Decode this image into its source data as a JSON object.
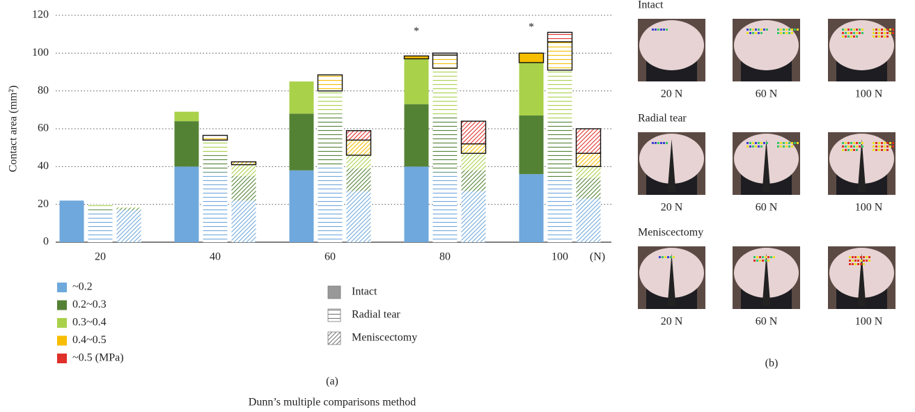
{
  "chart_data": {
    "type": "stacked_bar",
    "y_label": "Contact area (mm²)",
    "x_unit": "(N)",
    "categories": [
      "20",
      "40",
      "60",
      "80",
      "100"
    ],
    "conditions": [
      {
        "name": "Intact",
        "pattern": "solid"
      },
      {
        "name": "Radial tear",
        "pattern": "horizontal"
      },
      {
        "name": "Meniscectomy",
        "pattern": "diagonal"
      }
    ],
    "series": [
      {
        "name": "~0.2",
        "color": "#6fa8dc",
        "values": [
          [
            22,
            17,
            17
          ],
          [
            40,
            37,
            22
          ],
          [
            38,
            41,
            27
          ],
          [
            40,
            37,
            27
          ],
          [
            36,
            33,
            23
          ]
        ]
      },
      {
        "name": "0.2~0.3",
        "color": "#548235",
        "values": [
          [
            0,
            1.5,
            1
          ],
          [
            24,
            9,
            13
          ],
          [
            30,
            27,
            12
          ],
          [
            33,
            30,
            11
          ],
          [
            31,
            31,
            11
          ]
        ]
      },
      {
        "name": "0.3~0.4",
        "color": "#a9d14a",
        "values": [
          [
            0,
            1.5,
            0.5
          ],
          [
            5,
            8,
            6
          ],
          [
            17,
            12,
            7
          ],
          [
            24,
            25,
            9
          ],
          [
            28,
            27,
            6
          ]
        ]
      },
      {
        "name": "0.4~0.5",
        "color": "#f7bd00",
        "values": [
          [
            0,
            0,
            0
          ],
          [
            0,
            2.5,
            1.5
          ],
          [
            0,
            8.5,
            8
          ],
          [
            1.5,
            7,
            5
          ],
          [
            5,
            15,
            7
          ]
        ]
      },
      {
        "name": "~0.5 (MPa)",
        "color": "#e0302a",
        "values": [
          [
            0,
            0,
            0
          ],
          [
            0,
            0,
            0
          ],
          [
            0,
            0,
            5
          ],
          [
            0,
            1,
            12
          ],
          [
            0,
            5,
            13
          ]
        ]
      }
    ],
    "ylim": [
      0,
      120
    ],
    "yticks": [
      0,
      20,
      40,
      60,
      80,
      100,
      120
    ],
    "grid": true,
    "annotations": [
      "*",
      "*"
    ],
    "panel_label": "(a)",
    "caption": "Dunn’s multiple comparisons method"
  },
  "panel_b": {
    "label": "(b)",
    "rows": [
      {
        "title": "Intact",
        "loads": [
          "20 N",
          "60 N",
          "100 N"
        ]
      },
      {
        "title": "Radial tear",
        "loads": [
          "20 N",
          "60 N",
          "100 N"
        ]
      },
      {
        "title": "Meniscectomy",
        "loads": [
          "20 N",
          "60 N",
          "100 N"
        ]
      }
    ]
  }
}
